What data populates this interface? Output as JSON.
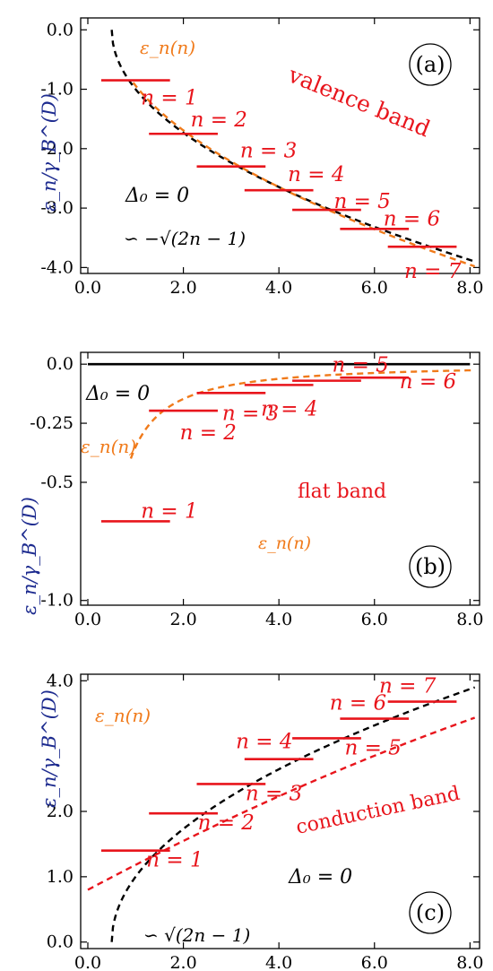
{
  "chart_data": [
    {
      "type": "line",
      "panel": "(a)",
      "title": "",
      "xlabel": "",
      "ylabel": "ε_n/γ_B^(D)",
      "xlim": [
        0,
        8
      ],
      "ylim": [
        -4,
        0
      ],
      "xticks": [
        "0.0",
        "2.0",
        "4.0",
        "6.0",
        "8.0"
      ],
      "xtick_values": [
        0,
        2,
        4,
        6,
        8
      ],
      "yticks": [
        "0.0",
        "-1.0",
        "-2.0",
        "-3.0",
        "-4.0"
      ],
      "ytick_values": [
        0,
        -1,
        -2,
        -3,
        -4
      ],
      "curve_black": {
        "name": "∽ −√(2n−1)",
        "formula": "-sqrt(2n-1)",
        "x_start": 0.5
      },
      "curve_orange": {
        "name": "ε_n(n)",
        "x_start": 0.95
      },
      "levels": [
        {
          "label": "n = 1",
          "n": 1,
          "y": -0.85
        },
        {
          "label": "n = 2",
          "n": 2,
          "y": -1.75
        },
        {
          "label": "n = 3",
          "n": 3,
          "y": -2.3
        },
        {
          "label": "n = 4",
          "n": 4,
          "y": -2.7
        },
        {
          "label": "n = 5",
          "n": 5,
          "y": -3.03
        },
        {
          "label": "n = 6",
          "n": 6,
          "y": -3.35
        },
        {
          "label": "n = 7",
          "n": 7,
          "y": -3.65
        }
      ],
      "band_label": "valence band",
      "delta_label": "Δ₀ = 0",
      "curve_label": "ε_n(n)",
      "approx_label": "∽ −√(2n − 1)"
    },
    {
      "type": "line",
      "panel": "(b)",
      "title": "",
      "xlabel": "",
      "ylabel": "ε_n/γ_B^(D)",
      "xlim": [
        0,
        8
      ],
      "ylim": [
        -1,
        0.05
      ],
      "xticks": [
        "0.0",
        "2.0",
        "4.0",
        "6.0",
        "8.0"
      ],
      "xtick_values": [
        0,
        2,
        4,
        6,
        8
      ],
      "yticks": [
        "0.0",
        "-0.25",
        "-0.5",
        "-1.0"
      ],
      "ytick_values": [
        0,
        -0.25,
        -0.5,
        -1.0
      ],
      "zero_line": {
        "y": 0
      },
      "curve_orange": {
        "name": "ε_n(n)",
        "x_start": 0.9
      },
      "levels": [
        {
          "label": "n = 1",
          "n": 1,
          "y": -0.665
        },
        {
          "label": "n = 2",
          "n": 2,
          "y": -0.197
        },
        {
          "label": "n = 3",
          "n": 3,
          "y": -0.122
        },
        {
          "label": "n = 4",
          "n": 4,
          "y": -0.088
        },
        {
          "label": "n = 5",
          "n": 5,
          "y": -0.07
        },
        {
          "label": "n = 6",
          "n": 6,
          "y": -0.057
        }
      ],
      "band_label": "flat band",
      "delta_label": "Δ₀ = 0",
      "curve_label": "ε_n(n)"
    },
    {
      "type": "line",
      "panel": "(c)",
      "title": "",
      "xlabel": "",
      "ylabel": "ε_n/γ_B^(D)",
      "xlim": [
        0,
        8
      ],
      "ylim": [
        0,
        4
      ],
      "xticks": [
        "0.0",
        "2.0",
        "4.0",
        "6.0",
        "8.0"
      ],
      "xtick_values": [
        0,
        2,
        4,
        6,
        8
      ],
      "yticks": [
        "0.0",
        "1.0",
        "2.0",
        "4.0"
      ],
      "ytick_values": [
        0,
        1,
        2,
        4
      ],
      "curve_black": {
        "name": "∽ √(2n−1)",
        "formula": "sqrt(2n-1)",
        "x_start": 0.5
      },
      "curve_red": {
        "name": "ε_n(n)",
        "x_start": 0.0
      },
      "levels": [
        {
          "label": "n = 1",
          "n": 1,
          "y": 1.4
        },
        {
          "label": "n = 2",
          "n": 2,
          "y": 1.97
        },
        {
          "label": "n = 3",
          "n": 3,
          "y": 2.42
        },
        {
          "label": "n = 4",
          "n": 4,
          "y": 2.8
        },
        {
          "label": "n = 5",
          "n": 5,
          "y": 3.12
        },
        {
          "label": "n = 6",
          "n": 6,
          "y": 3.42
        },
        {
          "label": "n = 7",
          "n": 7,
          "y": 3.68
        }
      ],
      "band_label": "conduction band",
      "delta_label": "Δ₀ = 0",
      "curve_label": "ε_n(n)",
      "approx_label": "∽ √(2n − 1)"
    }
  ]
}
